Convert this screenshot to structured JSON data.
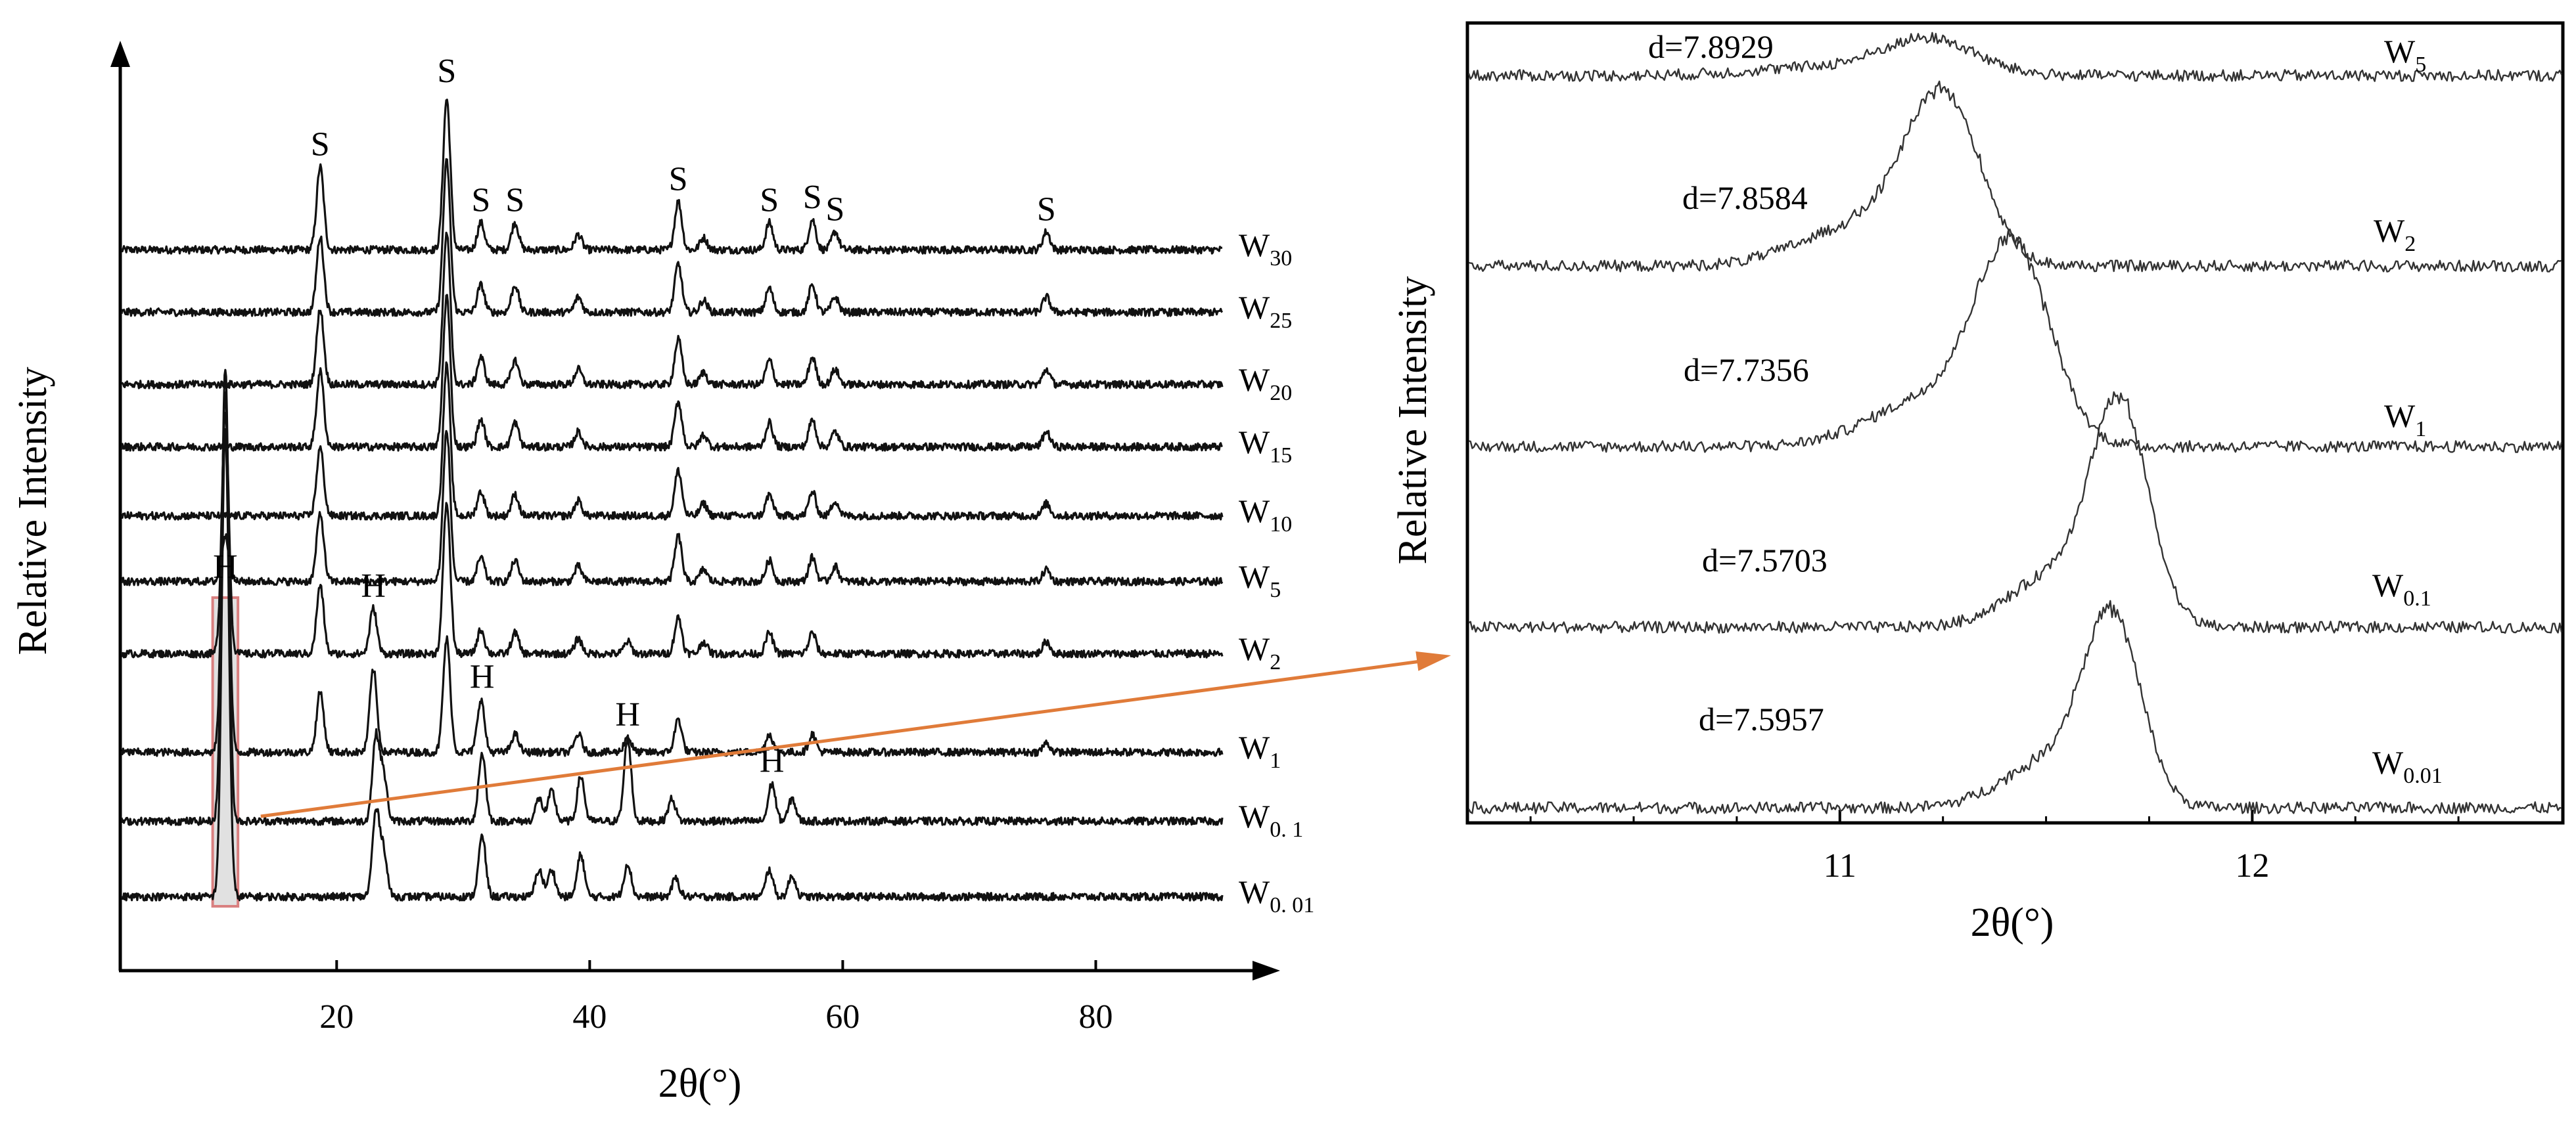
{
  "chart_data": [
    {
      "type": "line",
      "panel": "left",
      "title": "",
      "xlabel": "2θ(°)",
      "ylabel": "Relative Intensity",
      "xlim": [
        3,
        90
      ],
      "xticks": [
        20,
        40,
        60,
        80
      ],
      "xtick_labels": [
        "20",
        "40",
        "60",
        "80"
      ],
      "stacked": true,
      "series": [
        {
          "name": "W30",
          "label_main": "W",
          "label_sub": "30",
          "peaks": [
            [
              18.7,
              0.55
            ],
            [
              28.7,
              1.0
            ],
            [
              31.4,
              0.18
            ],
            [
              34.1,
              0.18
            ],
            [
              39.1,
              0.1
            ],
            [
              47.0,
              0.32
            ],
            [
              49.0,
              0.08
            ],
            [
              54.2,
              0.18
            ],
            [
              57.6,
              0.2
            ],
            [
              59.4,
              0.12
            ],
            [
              76.1,
              0.12
            ]
          ]
        },
        {
          "name": "W25",
          "label_main": "W",
          "label_sub": "25",
          "peaks": [
            [
              18.7,
              0.5
            ],
            [
              28.7,
              1.0
            ],
            [
              31.4,
              0.18
            ],
            [
              34.1,
              0.18
            ],
            [
              39.1,
              0.1
            ],
            [
              47.0,
              0.32
            ],
            [
              49.0,
              0.08
            ],
            [
              54.2,
              0.16
            ],
            [
              57.6,
              0.18
            ],
            [
              59.4,
              0.1
            ],
            [
              76.1,
              0.1
            ]
          ]
        },
        {
          "name": "W20",
          "label_main": "W",
          "label_sub": "20",
          "peaks": [
            [
              18.7,
              0.5
            ],
            [
              28.7,
              1.0
            ],
            [
              31.4,
              0.18
            ],
            [
              34.1,
              0.16
            ],
            [
              39.1,
              0.1
            ],
            [
              47.0,
              0.3
            ],
            [
              49.0,
              0.08
            ],
            [
              54.2,
              0.16
            ],
            [
              57.6,
              0.18
            ],
            [
              59.4,
              0.1
            ],
            [
              76.1,
              0.1
            ]
          ]
        },
        {
          "name": "W15",
          "label_main": "W",
          "label_sub": "15",
          "peaks": [
            [
              18.7,
              0.5
            ],
            [
              28.7,
              1.0
            ],
            [
              31.4,
              0.18
            ],
            [
              34.1,
              0.16
            ],
            [
              39.1,
              0.1
            ],
            [
              47.0,
              0.3
            ],
            [
              49.0,
              0.08
            ],
            [
              54.2,
              0.16
            ],
            [
              57.6,
              0.18
            ],
            [
              59.4,
              0.1
            ],
            [
              76.1,
              0.1
            ]
          ]
        },
        {
          "name": "W10",
          "label_main": "W",
          "label_sub": "10",
          "peaks": [
            [
              18.7,
              0.45
            ],
            [
              28.7,
              1.0
            ],
            [
              31.4,
              0.16
            ],
            [
              34.1,
              0.14
            ],
            [
              39.1,
              0.1
            ],
            [
              47.0,
              0.3
            ],
            [
              49.0,
              0.08
            ],
            [
              54.2,
              0.14
            ],
            [
              57.6,
              0.16
            ],
            [
              59.4,
              0.1
            ],
            [
              76.1,
              0.08
            ]
          ]
        },
        {
          "name": "W5",
          "label_main": "W",
          "label_sub": "5",
          "peaks": [
            [
              11.2,
              0.3
            ],
            [
              18.7,
              0.45
            ],
            [
              28.7,
              1.0
            ],
            [
              31.4,
              0.16
            ],
            [
              34.1,
              0.14
            ],
            [
              39.1,
              0.1
            ],
            [
              47.0,
              0.3
            ],
            [
              49.0,
              0.08
            ],
            [
              54.2,
              0.14
            ],
            [
              57.6,
              0.16
            ],
            [
              59.4,
              0.1
            ],
            [
              76.1,
              0.08
            ]
          ]
        },
        {
          "name": "W2",
          "label_main": "W",
          "label_sub": "2",
          "peaks": [
            [
              11.2,
              1.6
            ],
            [
              18.7,
              0.45
            ],
            [
              22.9,
              0.3
            ],
            [
              28.7,
              1.0
            ],
            [
              31.4,
              0.16
            ],
            [
              34.1,
              0.14
            ],
            [
              39.1,
              0.1
            ],
            [
              43.0,
              0.08
            ],
            [
              47.0,
              0.24
            ],
            [
              49.0,
              0.08
            ],
            [
              54.2,
              0.14
            ],
            [
              57.6,
              0.14
            ],
            [
              76.1,
              0.08
            ]
          ]
        },
        {
          "name": "W1",
          "label_main": "W",
          "label_sub": "1",
          "peaks": [
            [
              11.2,
              2.4
            ],
            [
              18.7,
              0.4
            ],
            [
              22.9,
              0.55
            ],
            [
              28.7,
              0.75
            ],
            [
              31.4,
              0.35
            ],
            [
              34.1,
              0.12
            ],
            [
              39.1,
              0.12
            ],
            [
              43.0,
              0.1
            ],
            [
              47.0,
              0.22
            ],
            [
              54.2,
              0.12
            ],
            [
              57.6,
              0.12
            ],
            [
              76.1,
              0.06
            ]
          ]
        },
        {
          "name": "W0.1",
          "label_main": "W",
          "label_sub": "0. 1",
          "peaks": [
            [
              11.2,
              3.0
            ],
            [
              23.1,
              0.55
            ],
            [
              23.7,
              0.3
            ],
            [
              31.5,
              0.45
            ],
            [
              36.0,
              0.15
            ],
            [
              37.0,
              0.2
            ],
            [
              39.3,
              0.3
            ],
            [
              43.0,
              0.55
            ],
            [
              46.5,
              0.15
            ],
            [
              54.4,
              0.25
            ],
            [
              56.0,
              0.15
            ]
          ]
        },
        {
          "name": "W0.01",
          "label_main": "W",
          "label_sub": "0. 01",
          "peaks": [
            [
              11.2,
              3.1
            ],
            [
              23.1,
              0.55
            ],
            [
              23.7,
              0.3
            ],
            [
              31.5,
              0.4
            ],
            [
              36.0,
              0.18
            ],
            [
              37.0,
              0.18
            ],
            [
              39.3,
              0.28
            ],
            [
              43.0,
              0.22
            ],
            [
              46.8,
              0.12
            ],
            [
              54.2,
              0.18
            ],
            [
              56.0,
              0.14
            ]
          ]
        }
      ],
      "annotations": [
        {
          "text": "S",
          "x": 18.7,
          "series": "W30"
        },
        {
          "text": "S",
          "x": 28.7,
          "series": "W30"
        },
        {
          "text": "S",
          "x": 31.4,
          "series": "W30"
        },
        {
          "text": "S",
          "x": 34.1,
          "series": "W30"
        },
        {
          "text": "S",
          "x": 47.0,
          "series": "W30"
        },
        {
          "text": "S",
          "x": 54.2,
          "series": "W30"
        },
        {
          "text": "S",
          "x": 57.6,
          "series": "W30"
        },
        {
          "text": "S",
          "x": 59.4,
          "series": "W30"
        },
        {
          "text": "S",
          "x": 76.1,
          "series": "W30"
        },
        {
          "text": "H",
          "x": 11.2,
          "series": "W5"
        },
        {
          "text": "H",
          "x": 22.9,
          "series": "W2"
        },
        {
          "text": "H",
          "x": 31.5,
          "series": "W1"
        },
        {
          "text": "H",
          "x": 43.0,
          "series": "W1"
        },
        {
          "text": "H",
          "x": 54.4,
          "series": "W0.1"
        }
      ],
      "highlight_range": [
        10.2,
        12.2
      ],
      "colors": {
        "line": "#111111",
        "highlight_fill": "#c8c8c8",
        "highlight_stroke": "#d98080",
        "arrow": "#e07b39"
      }
    },
    {
      "type": "line",
      "panel": "right",
      "title": "",
      "xlabel": "2θ(°)",
      "ylabel": "Relative Intensity",
      "xlim": [
        10.1,
        12.75
      ],
      "xticks": [
        11,
        12
      ],
      "xtick_labels": [
        "11",
        "12"
      ],
      "stacked": true,
      "series": [
        {
          "name": "W5",
          "label_main": "W",
          "label_sub": "5",
          "peak_2theta": 11.22,
          "d_label": "d=7.8929",
          "height": 0.18,
          "width": 0.11
        },
        {
          "name": "W2",
          "label_main": "W",
          "label_sub": "2",
          "peak_2theta": 11.25,
          "d_label": "d=7.8584",
          "height": 0.85,
          "width": 0.09
        },
        {
          "name": "W1",
          "label_main": "W",
          "label_sub": "1",
          "peak_2theta": 11.42,
          "d_label": "d=7.7356",
          "height": 1.0,
          "width": 0.09
        },
        {
          "name": "W0.1",
          "label_main": "W",
          "label_sub": "0.1",
          "peak_2theta": 11.68,
          "d_label": "d=7.5703",
          "height": 1.1,
          "width": 0.07
        },
        {
          "name": "W0.01",
          "label_main": "W",
          "label_sub": "0.01",
          "peak_2theta": 11.66,
          "d_label": "d=7.5957",
          "height": 0.95,
          "width": 0.07
        }
      ],
      "colors": {
        "line": "#333333"
      }
    }
  ]
}
